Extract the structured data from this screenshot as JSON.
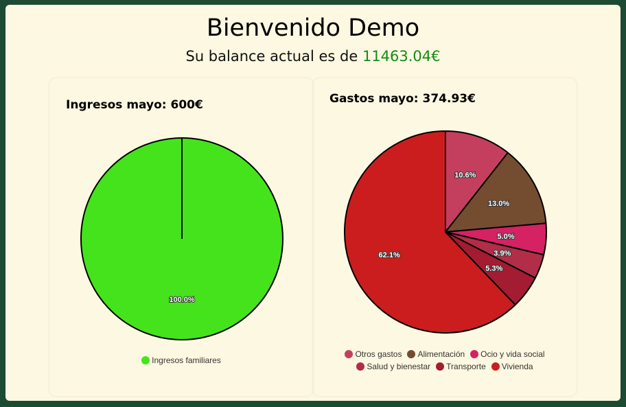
{
  "header": {
    "title": "Bienvenido Demo",
    "balance_prefix": "Su balance actual es de ",
    "balance_value": "11463.04€",
    "balance_color": "#138a13"
  },
  "income": {
    "heading": "Ingresos mayo: 600€",
    "chart_data": {
      "type": "pie",
      "title": "Ingresos mayo: 600€",
      "categories": [
        "Ingresos familiares"
      ],
      "values": [
        100.0
      ],
      "labels": [
        "100.0%"
      ],
      "colors": [
        "#45e31c"
      ],
      "legend": "bottom"
    }
  },
  "expenses": {
    "heading": "Gastos mayo: 374.93€",
    "chart_data": {
      "type": "pie",
      "title": "Gastos mayo: 374.93€",
      "categories": [
        "Otros gastos",
        "Alimentación",
        "Ocio y vida social",
        "Salud y bienestar",
        "Transporte",
        "Vivienda"
      ],
      "values": [
        10.6,
        13.0,
        5.0,
        3.9,
        5.3,
        62.1
      ],
      "labels": [
        "10.6%",
        "13.0%",
        "5.0%",
        "3.9%",
        "5.3%",
        "62.1%"
      ],
      "colors": [
        "#c43f5e",
        "#744d31",
        "#d42263",
        "#b12d48",
        "#a41c32",
        "#cb1d1d"
      ],
      "legend": "bottom"
    }
  }
}
